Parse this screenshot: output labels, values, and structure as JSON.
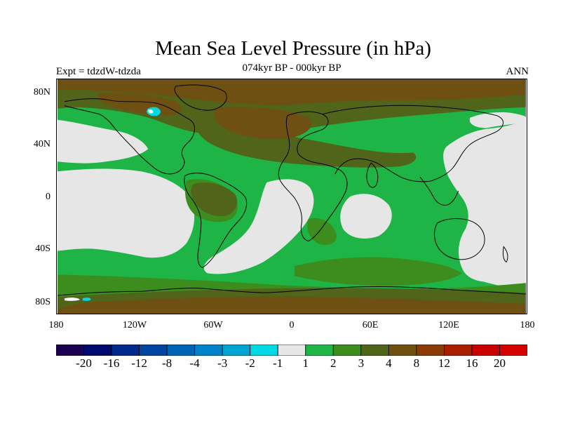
{
  "title": "Mean Sea Level Pressure (in hPa)",
  "subtitle": "074kyr BP - 000kyr BP",
  "experiment": "Expt = tdzdW-tdzda",
  "season": "ANN",
  "axes": {
    "lat_labels": [
      "80N",
      "40N",
      "0",
      "40S",
      "80S"
    ],
    "lon_labels": [
      "180",
      "120W",
      "60W",
      "0",
      "60E",
      "120E",
      "180"
    ]
  },
  "colorbar": {
    "labels": [
      "-20",
      "-16",
      "-12",
      "-8",
      "-4",
      "-3",
      "-2",
      "-1",
      "1",
      "2",
      "3",
      "4",
      "8",
      "12",
      "16",
      "20"
    ],
    "colors": [
      "#1a0050",
      "#000a6e",
      "#002a8c",
      "#0046a0",
      "#0064b4",
      "#0082c8",
      "#00a4d2",
      "#00d8e4",
      "#e6e6e6",
      "#1eb446",
      "#3c8c1e",
      "#50641a",
      "#6e5012",
      "#8c3a08",
      "#aa1e00",
      "#c80000",
      "#d40000"
    ]
  },
  "map_colors": {
    "ocean_low": "#e6e6e6",
    "green_light": "#1eb446",
    "green_mid": "#3c8c1e",
    "olive": "#50641a",
    "brown": "#6e5012",
    "cyan": "#00d8e4",
    "coast": "#000000"
  }
}
